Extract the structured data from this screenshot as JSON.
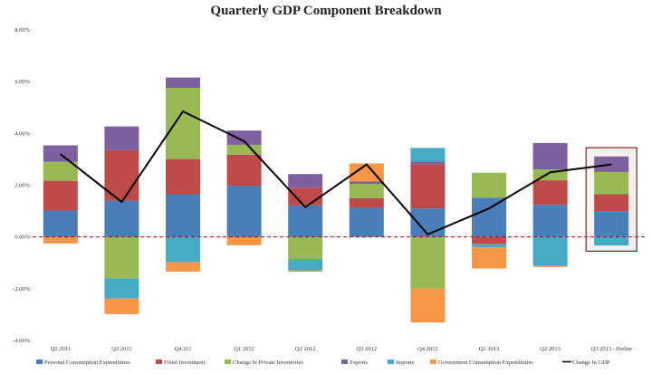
{
  "chart_data": {
    "type": "bar",
    "title": "Quarterly GDP Component Breakdown",
    "categories": [
      "Q2 2011",
      "Q3 2011",
      "Q4 211",
      "Q1 2012",
      "Q2 2012",
      "Q3 2012",
      "Q4 2012",
      "Q1 2013",
      "Q2 2013",
      "Q3 2013 - Prelim"
    ],
    "y_ticks": [
      "8.00%",
      "6.00%",
      "4.00%",
      "2.00%",
      "0.00%",
      "-2.00%",
      "-4.00%"
    ],
    "ylim": [
      -4,
      8
    ],
    "series": [
      {
        "name": "Personal Consumption Expenditures",
        "color": "#4a7ebb",
        "values": [
          1.02,
          1.4,
          1.65,
          1.98,
          1.22,
          1.12,
          1.1,
          1.52,
          1.24,
          1.0
        ]
      },
      {
        "name": "Fixed Investment",
        "color": "#be4b48",
        "values": [
          1.15,
          1.95,
          1.36,
          1.2,
          0.68,
          0.38,
          1.7,
          -0.28,
          0.95,
          0.65
        ]
      },
      {
        "name": "Change In Private Inventories",
        "color": "#98b954",
        "values": [
          0.73,
          -1.6,
          2.75,
          0.38,
          -0.85,
          0.55,
          -2.0,
          0.96,
          0.42,
          0.86
        ]
      },
      {
        "name": "Exports",
        "color": "#7d60a0",
        "values": [
          0.64,
          0.92,
          0.4,
          0.55,
          0.53,
          0.09,
          0.12,
          0.0,
          1.02,
          0.6
        ]
      },
      {
        "name": "Imports",
        "color": "#46aac5",
        "values": [
          0.0,
          -0.78,
          -0.97,
          0.0,
          -0.44,
          0.0,
          0.52,
          -0.12,
          -1.12,
          -0.33
        ]
      },
      {
        "name": "Government Consumption Expenditures",
        "color": "#f79646",
        "values": [
          -0.25,
          -0.6,
          -0.37,
          -0.32,
          -0.05,
          0.7,
          -1.3,
          -0.82,
          -0.04,
          0.0
        ]
      }
    ],
    "line": {
      "name": "Change In GDP",
      "color": "#000000",
      "values": [
        3.2,
        1.35,
        4.85,
        3.7,
        1.15,
        2.8,
        0.1,
        1.1,
        2.5,
        2.8
      ]
    },
    "zero_line": {
      "style": "dashed",
      "color": "#c00000"
    },
    "highlight_category": "Q3 2013 - Prelim",
    "legend_position": "bottom",
    "grid": false
  }
}
